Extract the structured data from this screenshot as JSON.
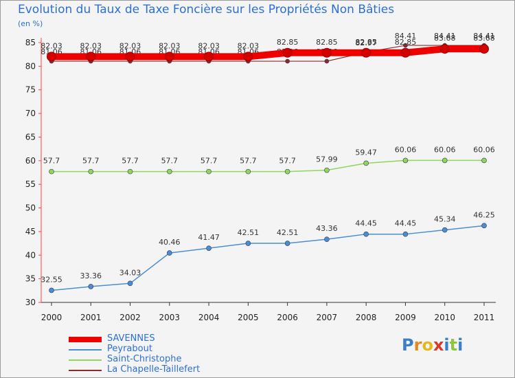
{
  "title": "Evolution du Taux de Taxe Foncière sur les Propriétés Non Bâties",
  "subtitle": "(en %)",
  "logo": {
    "letters": [
      "P",
      "r",
      "o",
      "x",
      "i",
      "t",
      "i"
    ],
    "colors": [
      "#3a7fc8",
      "#e08a1e",
      "#e6b820",
      "#d93a2b",
      "#3a7fc8",
      "#8cc63f",
      "#3a7fc8"
    ]
  },
  "chart_data": {
    "type": "line",
    "title": "Evolution du Taux de Taxe Foncière sur les Propriétés Non Bâties",
    "ylabel": "(en %)",
    "x": [
      "2000",
      "2001",
      "2002",
      "2003",
      "2004",
      "2005",
      "2006",
      "2007",
      "2008",
      "2009",
      "2010",
      "2011"
    ],
    "ylim": [
      30,
      85
    ],
    "yticks": [
      "30",
      "35",
      "40",
      "45",
      "50",
      "55",
      "60",
      "65",
      "70",
      "75",
      "80",
      "85"
    ],
    "grid": false,
    "series": [
      {
        "name": "SAVENNES",
        "color": "#ee0000",
        "values": [
          82.03,
          82.03,
          82.03,
          82.03,
          82.03,
          82.03,
          82.85,
          82.85,
          82.85,
          82.85,
          83.68,
          83.68
        ],
        "labels": [
          "82.03",
          "82.03",
          "82.03",
          "82.03",
          "82.03",
          "82.03",
          "82.85",
          "82.85",
          "82.85",
          "82.85",
          "83.68",
          "83.68"
        ]
      },
      {
        "name": "Peyrabout",
        "color": "#4a8ed0",
        "values": [
          32.55,
          33.36,
          34.03,
          40.46,
          41.47,
          42.51,
          42.51,
          43.36,
          44.45,
          44.45,
          45.34,
          46.25
        ],
        "labels": [
          "32.55",
          "33.36",
          "34.03",
          "40.46",
          "41.47",
          "42.51",
          "42.51",
          "43.36",
          "44.45",
          "44.45",
          "45.34",
          "46.25"
        ]
      },
      {
        "name": "Saint-Christophe",
        "color": "#8fd65a",
        "values": [
          57.7,
          57.7,
          57.7,
          57.7,
          57.7,
          57.7,
          57.7,
          57.99,
          59.47,
          60.06,
          60.06,
          60.06
        ],
        "labels": [
          "57.7",
          "57.7",
          "57.7",
          "57.7",
          "57.7",
          "57.7",
          "57.7",
          "57.99",
          "59.47",
          "60.06",
          "60.06",
          "60.06"
        ]
      },
      {
        "name": "La Chapelle-Taillefert",
        "color": "#8b2a2a",
        "values": [
          81.06,
          81.06,
          81.06,
          81.06,
          81.06,
          81.06,
          81.06,
          81.06,
          82.97,
          84.41,
          84.41,
          84.41
        ],
        "labels": [
          "81.06",
          "81.06",
          "81.06",
          "81.06",
          "81.06",
          "81.06",
          "81.06",
          "81.06",
          "82.97",
          "84.41",
          "84.41",
          "84.41"
        ]
      }
    ],
    "legend": [
      "SAVENNES",
      "Peyrabout",
      "Saint-Christophe",
      "La Chapelle-Taillefert"
    ],
    "legend_position": "bottom-left"
  }
}
